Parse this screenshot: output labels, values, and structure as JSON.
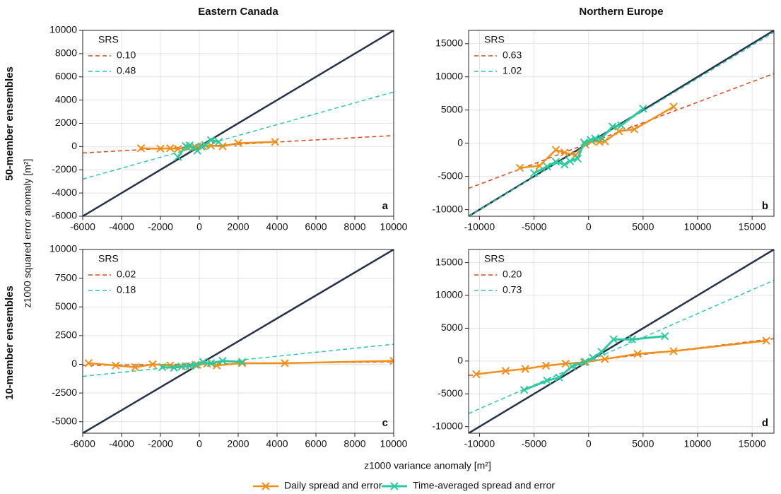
{
  "figure": {
    "columns": [
      "Eastern Canada",
      "Northern Europe"
    ],
    "rows": [
      "50-member ensembles",
      "10-member ensembles"
    ],
    "ylabel": "z1000 squared error anomaly [m²]",
    "xlabel": "z1000 variance anomaly [m²]",
    "legend": [
      {
        "name": "Daily spread and error",
        "color": "#f0901a"
      },
      {
        "name": "Time-averaged spread and error",
        "color": "#2ec9a0"
      }
    ],
    "identity_color": "#25324a"
  },
  "chart_data": [
    {
      "type": "line",
      "letter": "a",
      "legend_title": "SRS",
      "xlim": [
        -6000,
        10000
      ],
      "ylim": [
        -6000,
        10000
      ],
      "xticks": [
        -6000,
        -4000,
        -2000,
        0,
        2000,
        4000,
        6000,
        8000,
        10000
      ],
      "yticks": [
        -6000,
        -4000,
        -2000,
        0,
        2000,
        4000,
        6000,
        8000,
        10000
      ],
      "daily": {
        "x": [
          -3000,
          -2000,
          -1500,
          -1100,
          -600,
          -200,
          200,
          600,
          1200,
          2000,
          3900
        ],
        "values": [
          -150,
          -180,
          -150,
          -200,
          -80,
          -50,
          30,
          80,
          30,
          300,
          400
        ]
      },
      "averaged": {
        "x": [
          -1100,
          -700,
          -500,
          -300,
          -100,
          100,
          300,
          600,
          1000
        ],
        "values": [
          -900,
          50,
          100,
          -100,
          -350,
          0,
          150,
          550,
          400
        ]
      },
      "fits": [
        {
          "name": "0.10",
          "color": "#d9471c",
          "x": [
            -6000,
            10000
          ],
          "values": [
            -550,
            950
          ]
        },
        {
          "name": "0.48",
          "color": "#2ec9a0",
          "x": [
            -6000,
            10000
          ],
          "values": [
            -2800,
            4700
          ]
        }
      ]
    },
    {
      "type": "line",
      "letter": "b",
      "legend_title": "SRS",
      "xlim": [
        -11000,
        17000
      ],
      "ylim": [
        -11000,
        17000
      ],
      "xticks": [
        -10000,
        -5000,
        0,
        5000,
        10000,
        15000
      ],
      "yticks": [
        -10000,
        -5000,
        0,
        5000,
        10000,
        15000
      ],
      "daily": {
        "x": [
          -6300,
          -4500,
          -3000,
          -2200,
          -1200,
          -300,
          300,
          1000,
          1500,
          2800,
          4200,
          7800
        ],
        "values": [
          -3700,
          -3400,
          -1000,
          -1400,
          -1800,
          -200,
          300,
          200,
          300,
          1800,
          2100,
          5500
        ]
      },
      "averaged": {
        "x": [
          -5000,
          -3800,
          -3000,
          -2200,
          -1700,
          -1000,
          -400,
          200,
          600,
          1200,
          2200,
          3000,
          5000
        ],
        "values": [
          -4500,
          -3500,
          -2800,
          -3200,
          -2700,
          -2300,
          100,
          500,
          700,
          800,
          2500,
          2700,
          5200
        ]
      },
      "fits": [
        {
          "name": "0.63",
          "color": "#d9471c",
          "x": [
            -11000,
            17000
          ],
          "values": [
            -6800,
            10500
          ]
        },
        {
          "name": "1.02",
          "color": "#2ec9a0",
          "x": [
            -11000,
            17000
          ],
          "values": [
            -11000,
            16700
          ]
        }
      ]
    },
    {
      "type": "line",
      "letter": "c",
      "legend_title": "SRS",
      "xlim": [
        -6000,
        10000
      ],
      "ylim": [
        -6000,
        10000
      ],
      "xticks": [
        -6000,
        -4000,
        -2000,
        0,
        2000,
        4000,
        6000,
        8000,
        10000
      ],
      "yticks": [
        -5000,
        -2500,
        0,
        2500,
        5000,
        7500,
        10000
      ],
      "daily": {
        "x": [
          -5700,
          -4300,
          -3300,
          -2400,
          -1500,
          -700,
          -100,
          400,
          900,
          2200,
          4400,
          10000
        ],
        "values": [
          100,
          -100,
          -250,
          0,
          -100,
          -150,
          -50,
          50,
          -100,
          100,
          100,
          300
        ]
      },
      "averaged": {
        "x": [
          -1900,
          -1300,
          -900,
          -500,
          -200,
          200,
          600,
          1200,
          2200
        ],
        "values": [
          -250,
          -300,
          -200,
          -150,
          -50,
          200,
          100,
          300,
          200
        ]
      },
      "fits": [
        {
          "name": "0.02",
          "color": "#d9471c",
          "x": [
            -6000,
            10000
          ],
          "values": [
            -100,
            220
          ]
        },
        {
          "name": "0.18",
          "color": "#2ec9a0",
          "x": [
            -6000,
            10000
          ],
          "values": [
            -1050,
            1750
          ]
        }
      ]
    },
    {
      "type": "line",
      "letter": "d",
      "legend_title": "SRS",
      "xlim": [
        -11000,
        17000
      ],
      "ylim": [
        -11000,
        17000
      ],
      "xticks": [
        -10000,
        -5000,
        0,
        5000,
        10000,
        15000
      ],
      "yticks": [
        -10000,
        -5000,
        0,
        5000,
        10000,
        15000
      ],
      "daily": {
        "x": [
          -10300,
          -7600,
          -5800,
          -3900,
          -2100,
          -400,
          1500,
          4500,
          7800,
          16300
        ],
        "values": [
          -2000,
          -1500,
          -1200,
          -700,
          -400,
          -200,
          300,
          1100,
          1500,
          3100
        ]
      },
      "averaged": {
        "x": [
          -5900,
          -3800,
          -2700,
          -1500,
          -300,
          400,
          1200,
          2300,
          4000,
          7000
        ],
        "values": [
          -4400,
          -3000,
          -2500,
          -800,
          -100,
          500,
          1400,
          3300,
          3300,
          3800
        ]
      },
      "fits": [
        {
          "name": "0.20",
          "color": "#d9471c",
          "x": [
            -11000,
            17000
          ],
          "values": [
            -2200,
            3400
          ]
        },
        {
          "name": "0.73",
          "color": "#2ec9a0",
          "x": [
            -11000,
            17000
          ],
          "values": [
            -8000,
            12300
          ]
        }
      ]
    }
  ]
}
